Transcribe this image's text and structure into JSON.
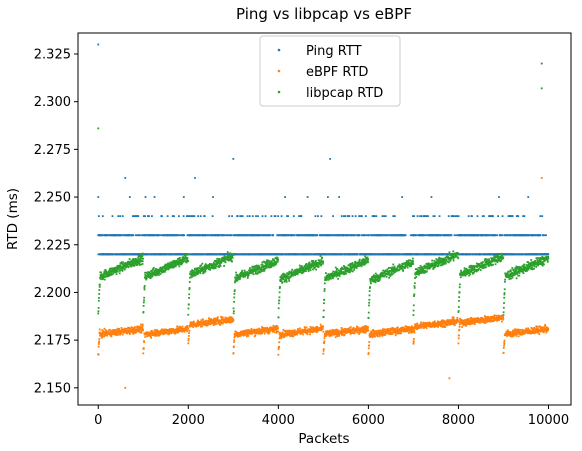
{
  "chart_data": {
    "type": "scatter",
    "title": "Ping vs libpcap vs eBPF",
    "xlabel": "Packets",
    "ylabel": "RTD (ms)",
    "xlim": [
      -450,
      10500
    ],
    "ylim": [
      2.141,
      2.336
    ],
    "x_ticks": [
      0,
      2000,
      4000,
      6000,
      8000,
      10000
    ],
    "y_ticks": [
      2.15,
      2.175,
      2.2,
      2.225,
      2.25,
      2.275,
      2.3,
      2.325
    ],
    "x_tick_labels": [
      "0",
      "2000",
      "4000",
      "6000",
      "8000",
      "10000"
    ],
    "y_tick_labels": [
      "2.150",
      "2.175",
      "2.200",
      "2.225",
      "2.250",
      "2.275",
      "2.300",
      "2.325"
    ],
    "grid": false,
    "legend_position": "top-center",
    "n_points": 10000,
    "series": [
      {
        "name": "Ping RTT",
        "color": "#1f77b4",
        "typical_values": [
          2.22,
          2.23
        ],
        "upper_values": [
          2.24
        ],
        "outliers": [
          {
            "x": 0,
            "y": 2.33
          },
          {
            "x": 9850,
            "y": 2.32
          },
          {
            "x": 3000,
            "y": 2.27
          },
          {
            "x": 5150,
            "y": 2.27
          },
          {
            "x": 600,
            "y": 2.26
          },
          {
            "x": 2150,
            "y": 2.26
          },
          {
            "x": 0,
            "y": 2.25
          },
          {
            "x": 700,
            "y": 2.25
          },
          {
            "x": 1050,
            "y": 2.25
          },
          {
            "x": 1250,
            "y": 2.25
          },
          {
            "x": 1900,
            "y": 2.25
          },
          {
            "x": 2550,
            "y": 2.25
          },
          {
            "x": 4150,
            "y": 2.25
          },
          {
            "x": 4650,
            "y": 2.25
          },
          {
            "x": 5100,
            "y": 2.25
          },
          {
            "x": 5350,
            "y": 2.25
          },
          {
            "x": 6750,
            "y": 2.25
          },
          {
            "x": 7400,
            "y": 2.25
          },
          {
            "x": 8900,
            "y": 2.25
          },
          {
            "x": 9550,
            "y": 2.25
          }
        ]
      },
      {
        "name": "eBPF RTD",
        "color": "#ff7f0e",
        "segment_period": 1000,
        "start_level": 2.176,
        "end_level": 2.185,
        "segment_step": [
          0.178,
          0.178,
          0.183,
          0.178,
          0.178,
          0.178,
          0.178,
          0.182,
          0.184,
          0.178
        ],
        "outliers": [
          {
            "x": 600,
            "y": 2.15
          },
          {
            "x": 7800,
            "y": 2.155
          },
          {
            "x": 9850,
            "y": 2.26
          }
        ]
      },
      {
        "name": "libpcap RTD",
        "color": "#2ca02c",
        "segment_period": 1000,
        "start_level": 2.205,
        "end_level": 2.218,
        "outliers": [
          {
            "x": 0,
            "y": 2.286
          },
          {
            "x": 9850,
            "y": 2.307
          }
        ]
      }
    ]
  }
}
